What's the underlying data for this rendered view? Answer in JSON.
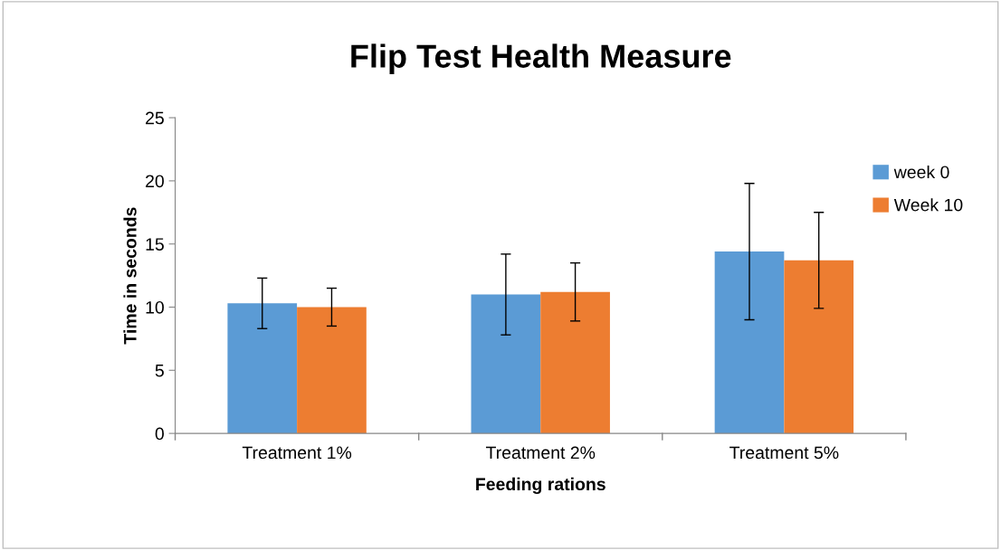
{
  "chart_data": {
    "type": "bar",
    "title": "Flip Test Health Measure",
    "xlabel": "Feeding rations",
    "ylabel": "Time in seconds",
    "categories": [
      "Treatment 1%",
      "Treatment 2%",
      "Treatment 5%"
    ],
    "series": [
      {
        "name": "week 0",
        "color": "#5b9bd5",
        "values": [
          10.3,
          11.0,
          14.4
        ],
        "errors": [
          2.0,
          3.2,
          5.4
        ]
      },
      {
        "name": "Week 10",
        "color": "#ed7d31",
        "values": [
          10.0,
          11.2,
          13.7
        ],
        "errors": [
          1.5,
          2.3,
          3.8
        ]
      }
    ],
    "ylim": [
      0,
      25
    ],
    "yticks": [
      0,
      5,
      10,
      15,
      20,
      25
    ],
    "grid": false,
    "legend": "right"
  }
}
